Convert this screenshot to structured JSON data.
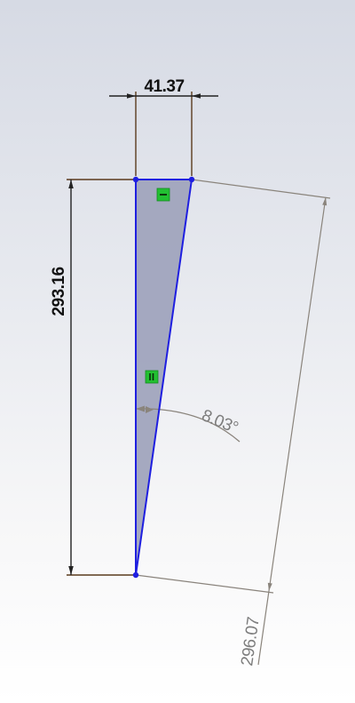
{
  "sketch": {
    "colors": {
      "sketch_line": "#1f1fe0",
      "sketch_fill": "#a0a4bd",
      "sketch_point": "#1f1fe0",
      "driving_dimension": "#5a3a1c",
      "driving_text": "#111111",
      "driven_dimension": "#8a847c",
      "driven_text": "#7d7d7d",
      "relation_badge": "#22c032"
    },
    "relations": [
      {
        "name": "horizontal",
        "icon": "horizontal-relation-icon"
      },
      {
        "name": "vertical",
        "icon": "vertical-relation-icon"
      }
    ]
  },
  "dimensions": {
    "top_width": "41.37",
    "height": "293.16",
    "angle": "8.03°",
    "hypotenuse": "296.07"
  }
}
